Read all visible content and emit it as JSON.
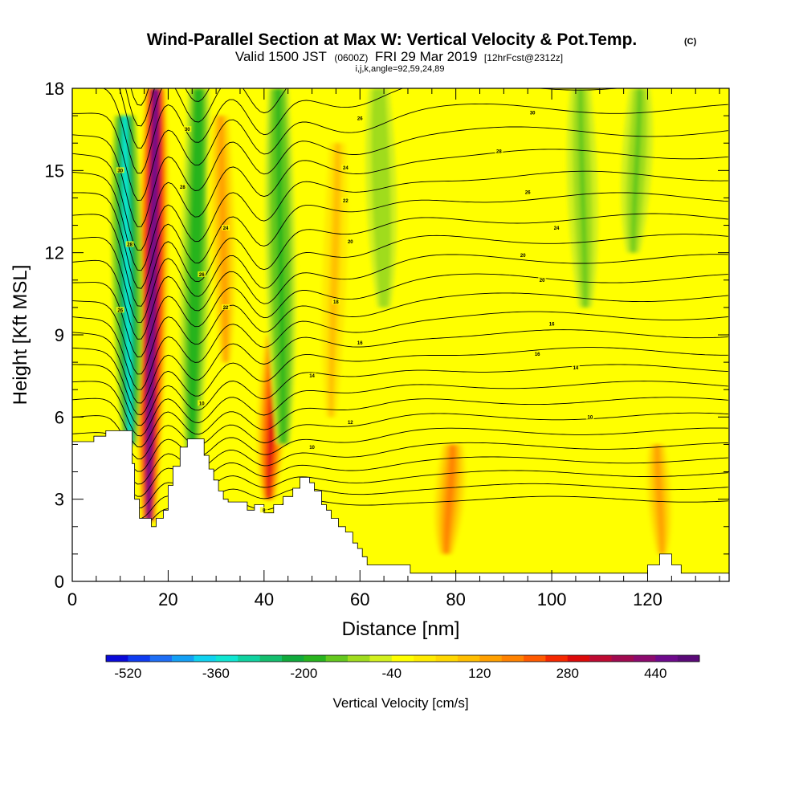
{
  "chart_data": {
    "type": "heatmap",
    "title": "Wind-Parallel Section at Max W: Vertical Velocity & Pot.Temp.",
    "title_mark": "(C)",
    "subtitle_parts": [
      "Valid 1500 JST",
      "(0600Z)",
      "FRI 29 Mar 2019",
      "[12hrFcst@2312z]"
    ],
    "run_info": "i,j,k,angle=92,59,24,89",
    "xlabel": "Distance [nm]",
    "ylabel": "Height [Kft MSL]",
    "xlim": [
      0,
      137
    ],
    "ylim": [
      0,
      18
    ],
    "x_ticks": [
      0,
      20,
      40,
      60,
      80,
      100,
      120
    ],
    "y_ticks": [
      0,
      3,
      6,
      9,
      12,
      15,
      18
    ],
    "colorbar": {
      "label": "Vertical Velocity [cm/s]",
      "tick_labels": [
        "-520",
        "-360",
        "-200",
        "-40",
        "120",
        "280",
        "440"
      ],
      "tick_values": [
        -520,
        -360,
        -200,
        -40,
        120,
        280,
        440
      ],
      "min": -560,
      "max": 520,
      "colors": [
        "#0a0ad8",
        "#0f3cf0",
        "#1e6ef5",
        "#14a0f5",
        "#10d2f0",
        "#10e6d2",
        "#10d2a0",
        "#14be6e",
        "#10aa3c",
        "#28b41e",
        "#64c81e",
        "#a0dc1e",
        "#d2f01e",
        "#ffff00",
        "#ffeb00",
        "#ffd700",
        "#ffbe00",
        "#ffa000",
        "#ff8200",
        "#ff5a00",
        "#f52800",
        "#dc0a0a",
        "#be0a32",
        "#a00a50",
        "#8c0a6e",
        "#6e0a8c",
        "#5a0a78"
      ]
    },
    "vertical_velocity_features": [
      {
        "kind": "updraft",
        "x": 16,
        "ytop": 18,
        "ybottom": 2.2,
        "peak": 460
      },
      {
        "kind": "downdraft",
        "x": 12,
        "ytop": 17,
        "ybottom": 5,
        "peak": -330
      },
      {
        "kind": "downdraft",
        "x": 25,
        "ytop": 18,
        "ybottom": 4.5,
        "peak": -200
      },
      {
        "kind": "updraft",
        "x": 32,
        "ytop": 17,
        "ybottom": 8,
        "peak": 150
      },
      {
        "kind": "updraft",
        "x": 41,
        "ytop": 9,
        "ybottom": 3,
        "peak": 300
      },
      {
        "kind": "downdraft",
        "x": 44,
        "ytop": 18,
        "ybottom": 5,
        "peak": -180
      },
      {
        "kind": "updraft",
        "x": 54,
        "ytop": 16,
        "ybottom": 6,
        "peak": 80
      },
      {
        "kind": "downdraft",
        "x": 65,
        "ytop": 18,
        "ybottom": 10,
        "peak": -120
      },
      {
        "kind": "updraft",
        "x": 78,
        "ytop": 5,
        "ybottom": 1,
        "peak": 160
      },
      {
        "kind": "downdraft",
        "x": 107,
        "ytop": 18,
        "ybottom": 10,
        "peak": -130
      },
      {
        "kind": "downdraft",
        "x": 117,
        "ytop": 18,
        "ybottom": 12,
        "peak": -140
      },
      {
        "kind": "updraft",
        "x": 123,
        "ytop": 5,
        "ybottom": 1,
        "peak": 140
      }
    ],
    "potential_temperature_contours": {
      "lowest_height": 3.0,
      "spacing": 0.45,
      "count": 34,
      "labels": [
        {
          "x": 40,
          "y": 2.6,
          "text": "8"
        },
        {
          "x": 50,
          "y": 4.9,
          "text": "10"
        },
        {
          "x": 58,
          "y": 5.8,
          "text": "12"
        },
        {
          "x": 50,
          "y": 7.5,
          "text": "14"
        },
        {
          "x": 60,
          "y": 8.7,
          "text": "16"
        },
        {
          "x": 55,
          "y": 10.2,
          "text": "18"
        },
        {
          "x": 58,
          "y": 12.4,
          "text": "20"
        },
        {
          "x": 57,
          "y": 13.9,
          "text": "22"
        },
        {
          "x": 57,
          "y": 15.1,
          "text": "24"
        },
        {
          "x": 60,
          "y": 16.9,
          "text": "26"
        },
        {
          "x": 108,
          "y": 6.0,
          "text": "10"
        },
        {
          "x": 105,
          "y": 7.8,
          "text": "14"
        },
        {
          "x": 100,
          "y": 9.4,
          "text": "16"
        },
        {
          "x": 97,
          "y": 8.3,
          "text": "16"
        },
        {
          "x": 98,
          "y": 11.0,
          "text": "20"
        },
        {
          "x": 94,
          "y": 11.9,
          "text": "20"
        },
        {
          "x": 101,
          "y": 12.9,
          "text": "24"
        },
        {
          "x": 95,
          "y": 14.2,
          "text": "26"
        },
        {
          "x": 89,
          "y": 15.7,
          "text": "28"
        },
        {
          "x": 96,
          "y": 17.1,
          "text": "30"
        },
        {
          "x": 10,
          "y": 15.0,
          "text": "30"
        },
        {
          "x": 12,
          "y": 12.3,
          "text": "28"
        },
        {
          "x": 10,
          "y": 9.9,
          "text": "26"
        },
        {
          "x": 24,
          "y": 16.5,
          "text": "30"
        },
        {
          "x": 23,
          "y": 14.4,
          "text": "28"
        },
        {
          "x": 27,
          "y": 11.2,
          "text": "26"
        },
        {
          "x": 32,
          "y": 12.9,
          "text": "24"
        },
        {
          "x": 32,
          "y": 10.0,
          "text": "22"
        },
        {
          "x": 27,
          "y": 6.5,
          "text": "10"
        }
      ]
    },
    "terrain": [
      [
        0,
        5.1
      ],
      [
        4.5,
        5.1
      ],
      [
        4.5,
        5.3
      ],
      [
        7,
        5.3
      ],
      [
        7,
        5.5
      ],
      [
        12.5,
        5.5
      ],
      [
        12.5,
        4.3
      ],
      [
        13,
        4.3
      ],
      [
        13,
        3.0
      ],
      [
        14,
        3.0
      ],
      [
        14,
        2.3
      ],
      [
        16.5,
        2.3
      ],
      [
        16.5,
        2.0
      ],
      [
        17.5,
        2.0
      ],
      [
        17.5,
        2.3
      ],
      [
        19,
        2.3
      ],
      [
        19,
        2.6
      ],
      [
        20,
        2.6
      ],
      [
        20,
        3.5
      ],
      [
        21,
        3.5
      ],
      [
        21,
        4.2
      ],
      [
        22.5,
        4.2
      ],
      [
        22.5,
        4.9
      ],
      [
        24,
        4.9
      ],
      [
        24,
        5.2
      ],
      [
        27.5,
        5.2
      ],
      [
        27.5,
        4.6
      ],
      [
        28.5,
        4.6
      ],
      [
        28.5,
        4.1
      ],
      [
        29.5,
        4.1
      ],
      [
        29.5,
        3.7
      ],
      [
        30.5,
        3.7
      ],
      [
        30.5,
        3.3
      ],
      [
        31.5,
        3.3
      ],
      [
        31.5,
        3.0
      ],
      [
        32.5,
        3.0
      ],
      [
        32.5,
        2.9
      ],
      [
        36.5,
        2.9
      ],
      [
        36.5,
        2.6
      ],
      [
        38,
        2.6
      ],
      [
        38,
        2.8
      ],
      [
        40,
        2.8
      ],
      [
        40,
        2.5
      ],
      [
        42,
        2.5
      ],
      [
        42,
        2.8
      ],
      [
        44,
        2.8
      ],
      [
        44,
        3.1
      ],
      [
        46,
        3.1
      ],
      [
        46,
        3.4
      ],
      [
        47.5,
        3.4
      ],
      [
        47.5,
        3.8
      ],
      [
        49.5,
        3.8
      ],
      [
        49.5,
        3.6
      ],
      [
        50.5,
        3.6
      ],
      [
        50.5,
        3.3
      ],
      [
        52,
        3.3
      ],
      [
        52,
        2.8
      ],
      [
        53,
        2.8
      ],
      [
        53,
        2.6
      ],
      [
        54,
        2.6
      ],
      [
        54,
        2.3
      ],
      [
        55.5,
        2.3
      ],
      [
        55.5,
        2.0
      ],
      [
        57,
        2.0
      ],
      [
        57,
        1.8
      ],
      [
        58.5,
        1.8
      ],
      [
        58.5,
        1.4
      ],
      [
        59.5,
        1.4
      ],
      [
        59.5,
        1.2
      ],
      [
        60.5,
        1.2
      ],
      [
        60.5,
        0.9
      ],
      [
        61.5,
        0.9
      ],
      [
        61.5,
        0.6
      ],
      [
        70.5,
        0.6
      ],
      [
        70.5,
        0.3
      ],
      [
        120,
        0.3
      ],
      [
        120,
        0.6
      ],
      [
        122.5,
        0.6
      ],
      [
        122.5,
        1.0
      ],
      [
        125,
        1.0
      ],
      [
        125,
        0.6
      ],
      [
        127,
        0.6
      ],
      [
        127,
        0.3
      ],
      [
        137,
        0.3
      ]
    ]
  }
}
